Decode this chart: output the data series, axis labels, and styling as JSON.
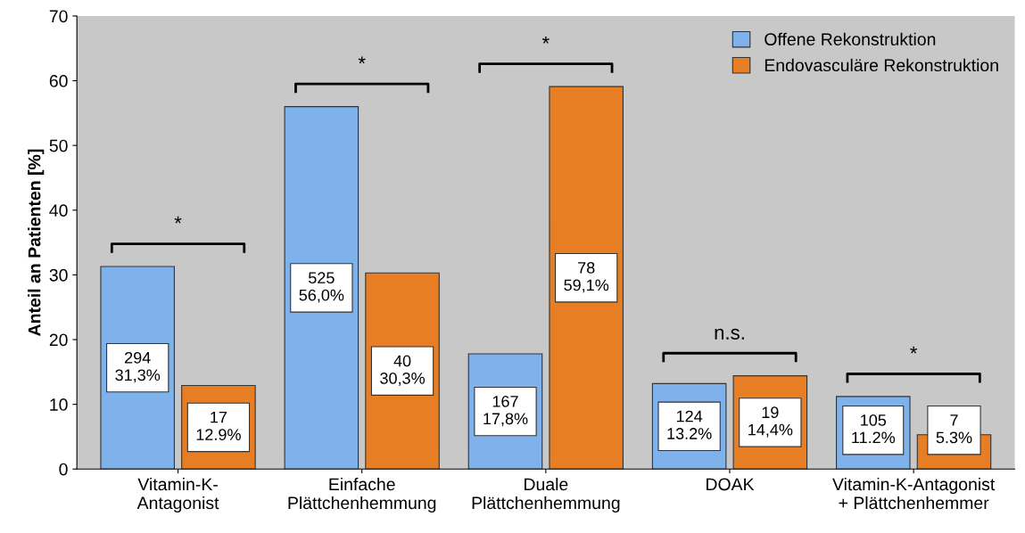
{
  "chart_data": {
    "type": "bar",
    "ylabel": "Anteil an Patienten [%]",
    "categories": [
      "Vitamin-K-\nAntagonist",
      "Einfache\nPlättchenhemmung",
      "Duale\nPlättchenhemmung",
      "DOAK",
      "Vitamin-K-Antagonist\n+ Plättchenhemmer"
    ],
    "series": [
      {
        "name": "Offene Rekonstruktion",
        "color": "#7fb2ea",
        "values": [
          31.3,
          56.0,
          17.8,
          13.2,
          11.2
        ],
        "value_labels": [
          "294\n31,3%",
          "525\n56,0%",
          "167\n17,8%",
          "124\n13.2%",
          "105\n11.2%"
        ]
      },
      {
        "name": "Endovasculäre Rekonstruktion",
        "color": "#e87e24",
        "values": [
          12.9,
          30.3,
          59.1,
          14.4,
          5.3
        ],
        "value_labels": [
          "17\n12.9%",
          "40\n30,3%",
          "78\n59,1%",
          "19\n14,4%",
          "7\n5.3%"
        ]
      }
    ],
    "annotations": [
      "*",
      "*",
      "*",
      "n.s.",
      "*"
    ],
    "ylim": [
      0,
      70
    ],
    "yticks": [
      0,
      10,
      20,
      30,
      40,
      50,
      60,
      70
    ],
    "grid": false,
    "legend": "top right"
  }
}
